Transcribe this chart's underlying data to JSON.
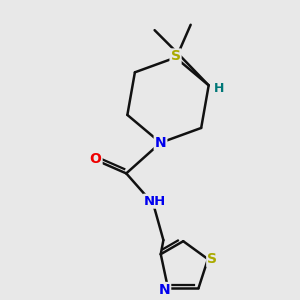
{
  "background_color": "#e8e8e8",
  "atom_colors": {
    "S": "#aaaa00",
    "N": "#0000ee",
    "O": "#ee0000",
    "H": "#007777",
    "C": "#111111"
  },
  "bond_color": "#111111",
  "bond_width": 1.8,
  "figsize": [
    3.0,
    3.0
  ],
  "dpi": 100,
  "xlim": [
    1,
    9
  ],
  "ylim": [
    1,
    9
  ]
}
